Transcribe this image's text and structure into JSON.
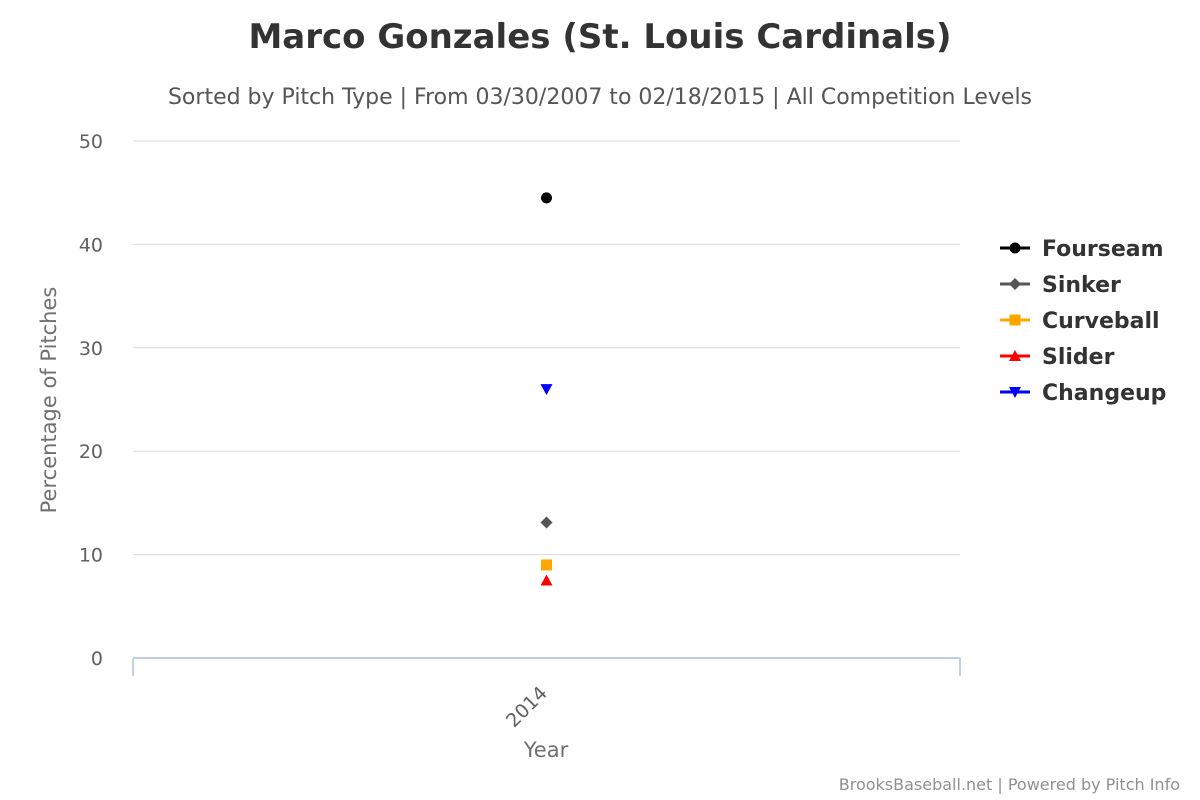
{
  "chart_data": {
    "type": "scatter",
    "title": "Marco Gonzales (St. Louis Cardinals)",
    "subtitle": "Sorted by Pitch Type | From 03/30/2007 to 02/18/2015 | All Competition Levels",
    "xlabel": "Year",
    "ylabel": "Percentage of Pitches",
    "categories": [
      "2014"
    ],
    "ylim": [
      0,
      50
    ],
    "yticks": [
      0,
      10,
      20,
      30,
      40,
      50
    ],
    "grid": true,
    "legend_position": "right",
    "series": [
      {
        "name": "Fourseam",
        "color": "#000000",
        "marker": "circle",
        "values": [
          44.5
        ]
      },
      {
        "name": "Sinker",
        "color": "#555555",
        "marker": "diamond",
        "values": [
          13.1
        ]
      },
      {
        "name": "Curveball",
        "color": "#FFA500",
        "marker": "square",
        "values": [
          9.0
        ]
      },
      {
        "name": "Slider",
        "color": "#FF0000",
        "marker": "triangle",
        "values": [
          7.5
        ]
      },
      {
        "name": "Changeup",
        "color": "#0000FF",
        "marker": "triangle-down",
        "values": [
          26.0
        ]
      }
    ]
  },
  "credits": "BrooksBaseball.net | Powered by Pitch Info"
}
